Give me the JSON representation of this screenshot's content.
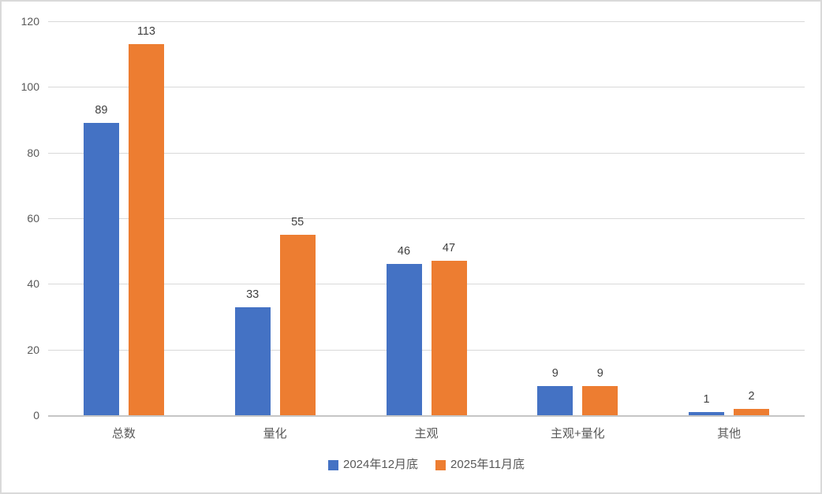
{
  "chart_data": {
    "type": "bar",
    "categories": [
      "总数",
      "量化",
      "主观",
      "主观+量化",
      "其他"
    ],
    "series": [
      {
        "name": "2024年12月底",
        "color": "#4472C4",
        "values": [
          89,
          33,
          46,
          9,
          1
        ]
      },
      {
        "name": "2025年11月底",
        "color": "#ED7D31",
        "values": [
          113,
          55,
          47,
          9,
          2
        ]
      }
    ],
    "title": "",
    "xlabel": "",
    "ylabel": "",
    "ylim": [
      0,
      120
    ],
    "yticks": [
      0,
      20,
      40,
      60,
      80,
      100,
      120
    ],
    "grid": true,
    "data_labels": true,
    "legend_position": "bottom"
  },
  "colors": {
    "gridline": "#D9D9D9",
    "axis_line": "#C6C6C6",
    "tick_label": "#595959",
    "data_label": "#404040",
    "legend_text": "#595959",
    "border": "#D9D9D9",
    "background": "#FFFFFF",
    "series_blue": "#4472C4",
    "series_orange": "#ED7D31"
  }
}
